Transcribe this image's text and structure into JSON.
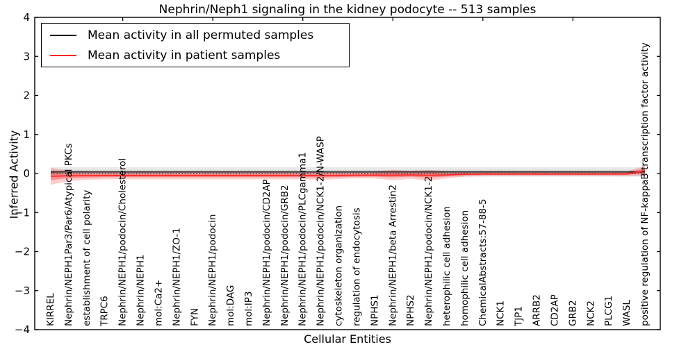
{
  "figure": {
    "title": "Nephrin/Neph1 signaling in the kidney podocyte -- 513 samples",
    "xlabel": "Cellular Entities",
    "ylabel": "Inferred Activity"
  },
  "legend": {
    "entries": [
      {
        "label": "Mean activity in all permuted samples",
        "color": "#000000"
      },
      {
        "label": "Mean activity in patient samples",
        "color": "#ff2222"
      }
    ]
  },
  "chart_data": {
    "type": "line",
    "title": "Nephrin/Neph1 signaling in the kidney podocyte -- 513 samples",
    "xlabel": "Cellular Entities",
    "ylabel": "Inferred Activity",
    "ylim": [
      -4,
      4
    ],
    "ytick_labels": [
      "4",
      "3",
      "2",
      "1",
      "0",
      "−1",
      "−2",
      "−3",
      "−4"
    ],
    "ytick_values": [
      4,
      3,
      2,
      1,
      0,
      -1,
      -2,
      -3,
      -4
    ],
    "xtick_indices_top": [
      4,
      9,
      14,
      19,
      24,
      29
    ],
    "grid": false,
    "legend_position": "upper left",
    "zero_line": true,
    "categories": [
      "KIRREL",
      "Nephrin/NEPH1Par3/Par6/Atypical PKCs",
      "establishment of cell polarity",
      "TRPC6",
      "Nephrin/NEPH1/podocin/Cholesterol",
      "Nephrin/NEPH1",
      "mol:Ca2+",
      "Nephrin/NEPH1/ZO-1",
      "FYN",
      "Nephrin/NEPH1/podocin",
      "mol:DAG",
      "mol:IP3",
      "Nephrin/NEPH1/podocin/CD2AP",
      "Nephrin/NEPH1/podocin/GRB2",
      "Nephrin/NEPH1/podocin/PLCgamma1",
      "Nephrin/NEPH1/podocin/NCK1-2/N-WASP",
      "cytoskeleton organization",
      "regulation of endocytosis",
      "NPHS1",
      "Nephrin/NEPH1/beta Arrestin2",
      "NPHS2",
      "Nephrin/NEPH1/podocin/NCK1-2",
      "heterophilic cell adhesion",
      "homophilic cell adhesion",
      "ChemicalAbstracts:57-88-5",
      "NCK1",
      "TJP1",
      "ARRB2",
      "CD2AP",
      "GRB2",
      "NCK2",
      "PLCG1",
      "WASL",
      "positive regulation of NF-kappaB transcription factor activity"
    ],
    "series": [
      {
        "name": "Mean activity in all permuted samples",
        "color": "#000000",
        "band_color": "#777777",
        "values": [
          0.04,
          0.04,
          0.04,
          0.04,
          0.04,
          0.04,
          0.04,
          0.04,
          0.04,
          0.04,
          0.04,
          0.04,
          0.04,
          0.04,
          0.04,
          0.04,
          0.04,
          0.04,
          0.04,
          0.04,
          0.04,
          0.04,
          0.04,
          0.04,
          0.04,
          0.04,
          0.04,
          0.04,
          0.04,
          0.04,
          0.04,
          0.04,
          0.04,
          0.04
        ],
        "band": [
          0.12,
          0.12,
          0.12,
          0.12,
          0.12,
          0.12,
          0.12,
          0.12,
          0.12,
          0.12,
          0.12,
          0.12,
          0.12,
          0.12,
          0.12,
          0.12,
          0.12,
          0.12,
          0.12,
          0.12,
          0.12,
          0.12,
          0.12,
          0.12,
          0.12,
          0.12,
          0.12,
          0.12,
          0.12,
          0.12,
          0.12,
          0.12,
          0.12,
          0.12
        ]
      },
      {
        "name": "Mean activity in patient samples",
        "color": "#ff2222",
        "band_color": "#ff0000",
        "values": [
          -0.07,
          -0.06,
          -0.055,
          -0.05,
          -0.05,
          -0.05,
          -0.05,
          -0.05,
          -0.05,
          -0.05,
          -0.05,
          -0.05,
          -0.05,
          -0.05,
          -0.05,
          -0.055,
          -0.05,
          -0.045,
          -0.04,
          -0.04,
          -0.035,
          -0.045,
          -0.035,
          -0.02,
          -0.015,
          -0.015,
          -0.015,
          -0.015,
          -0.015,
          -0.015,
          -0.015,
          -0.015,
          -0.01,
          0.07
        ],
        "band": [
          0.22,
          0.13,
          0.11,
          0.1,
          0.1,
          0.1,
          0.1,
          0.1,
          0.1,
          0.1,
          0.1,
          0.1,
          0.1,
          0.1,
          0.1,
          0.11,
          0.09,
          0.08,
          0.09,
          0.13,
          0.1,
          0.14,
          0.09,
          0.06,
          0.05,
          0.05,
          0.05,
          0.05,
          0.05,
          0.05,
          0.05,
          0.05,
          0.06,
          0.13
        ]
      }
    ]
  }
}
